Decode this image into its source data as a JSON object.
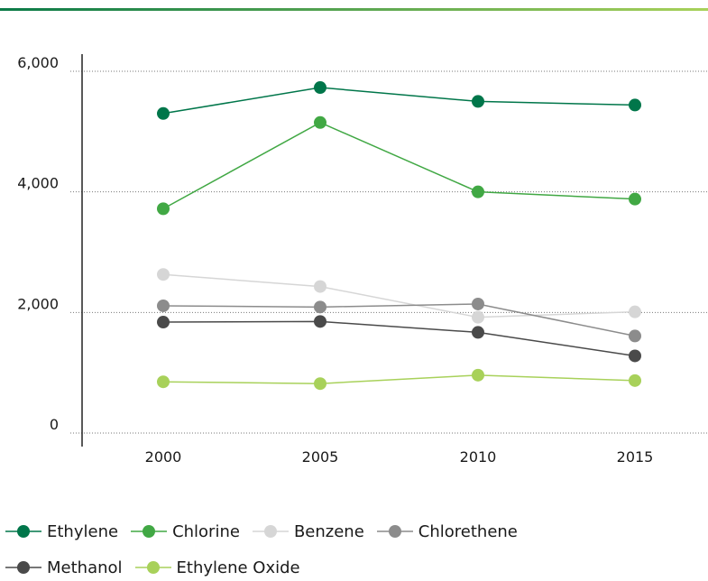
{
  "chart_data": {
    "type": "line",
    "title": "",
    "xlabel": "",
    "ylabel": "",
    "categories": [
      "2000",
      "2005",
      "2010",
      "2015"
    ],
    "ylim": [
      0,
      6000
    ],
    "yticks": [
      0,
      2000,
      4000,
      6000
    ],
    "ytick_labels": [
      "0",
      "2,000",
      "4,000",
      "6,000"
    ],
    "grid": "horizontal dotted",
    "legend_position": "bottom",
    "series": [
      {
        "name": "Ethylene",
        "color": "#00764a",
        "values": [
          5300,
          5730,
          5500,
          5440
        ]
      },
      {
        "name": "Chlorine",
        "color": "#41a844",
        "values": [
          3720,
          5150,
          4000,
          3880
        ]
      },
      {
        "name": "Benzene",
        "color": "#d6d6d6",
        "values": [
          2630,
          2430,
          1920,
          2010
        ]
      },
      {
        "name": "Chlorethene",
        "color": "#8c8c8c",
        "values": [
          2110,
          2090,
          2140,
          1610
        ]
      },
      {
        "name": "Methanol",
        "color": "#4a4a4a",
        "values": [
          1840,
          1850,
          1670,
          1280
        ]
      },
      {
        "name": "Ethylene Oxide",
        "color": "#a8d15a",
        "values": [
          850,
          820,
          960,
          870
        ]
      }
    ]
  },
  "header_bar": {
    "color_start": "#0b7a48",
    "color_end": "#a8d15a"
  }
}
